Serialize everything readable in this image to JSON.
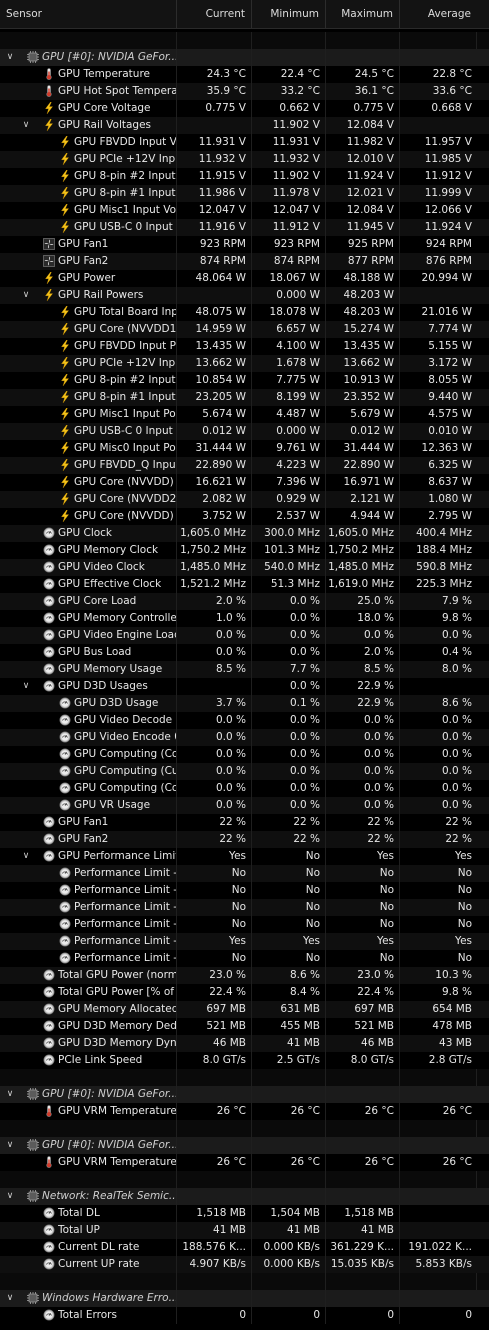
{
  "columns": {
    "sensor": "Sensor",
    "current": "Current",
    "minimum": "Minimum",
    "maximum": "Maximum",
    "average": "Average"
  },
  "rows": [
    {
      "type": "spacer"
    },
    {
      "type": "group",
      "level": 0,
      "expand": "v",
      "icon": "chip-icon",
      "label": "GPU [#0]: NVIDIA GeFor...",
      "v": [
        "",
        "",
        "",
        ""
      ]
    },
    {
      "type": "item",
      "level": 1,
      "icon": "thermometer-icon",
      "label": "GPU Temperature",
      "v": [
        "24.3 °C",
        "22.4 °C",
        "24.5 °C",
        "22.8 °C"
      ]
    },
    {
      "type": "item",
      "level": 1,
      "icon": "thermometer-icon",
      "label": "GPU Hot Spot Temperature",
      "v": [
        "35.9 °C",
        "33.2 °C",
        "36.1 °C",
        "33.6 °C"
      ]
    },
    {
      "type": "item",
      "level": 1,
      "icon": "lightning-icon",
      "label": "GPU Core Voltage",
      "v": [
        "0.775 V",
        "0.662 V",
        "0.775 V",
        "0.668 V"
      ]
    },
    {
      "type": "item",
      "level": 1,
      "expand": "v",
      "icon": "lightning-icon",
      "label": "GPU Rail Voltages",
      "v": [
        "",
        "11.902 V",
        "12.084 V",
        ""
      ]
    },
    {
      "type": "item",
      "level": 2,
      "icon": "lightning-icon",
      "label": "GPU FBVDD Input Vol...",
      "v": [
        "11.931 V",
        "11.931 V",
        "11.982 V",
        "11.957 V"
      ]
    },
    {
      "type": "item",
      "level": 2,
      "icon": "lightning-icon",
      "label": "GPU PCIe +12V Inpu...",
      "v": [
        "11.932 V",
        "11.932 V",
        "12.010 V",
        "11.985 V"
      ]
    },
    {
      "type": "item",
      "level": 2,
      "icon": "lightning-icon",
      "label": "GPU 8-pin #2 Input V...",
      "v": [
        "11.915 V",
        "11.902 V",
        "11.924 V",
        "11.912 V"
      ]
    },
    {
      "type": "item",
      "level": 2,
      "icon": "lightning-icon",
      "label": "GPU 8-pin #1 Input V...",
      "v": [
        "11.986 V",
        "11.978 V",
        "12.021 V",
        "11.999 V"
      ]
    },
    {
      "type": "item",
      "level": 2,
      "icon": "lightning-icon",
      "label": "GPU Misc1 Input Volt...",
      "v": [
        "12.047 V",
        "12.047 V",
        "12.084 V",
        "12.066 V"
      ]
    },
    {
      "type": "item",
      "level": 2,
      "icon": "lightning-icon",
      "label": "GPU USB-C 0 Input V...",
      "v": [
        "11.916 V",
        "11.912 V",
        "11.945 V",
        "11.924 V"
      ]
    },
    {
      "type": "item",
      "level": 1,
      "icon": "fan-icon",
      "label": "GPU Fan1",
      "v": [
        "923 RPM",
        "923 RPM",
        "925 RPM",
        "924 RPM"
      ]
    },
    {
      "type": "item",
      "level": 1,
      "icon": "fan-icon",
      "label": "GPU Fan2",
      "v": [
        "874 RPM",
        "874 RPM",
        "877 RPM",
        "876 RPM"
      ]
    },
    {
      "type": "item",
      "level": 1,
      "icon": "lightning-icon",
      "label": "GPU Power",
      "v": [
        "48.064 W",
        "18.067 W",
        "48.188 W",
        "20.994 W"
      ]
    },
    {
      "type": "item",
      "level": 1,
      "expand": "v",
      "icon": "lightning-icon",
      "label": "GPU Rail Powers",
      "v": [
        "",
        "0.000 W",
        "48.203 W",
        ""
      ]
    },
    {
      "type": "item",
      "level": 2,
      "icon": "lightning-icon",
      "label": "GPU Total Board Inpu...",
      "v": [
        "48.075 W",
        "18.078 W",
        "48.203 W",
        "21.016 W"
      ]
    },
    {
      "type": "item",
      "level": 2,
      "icon": "lightning-icon",
      "label": "GPU Core (NVVDD1) I...",
      "v": [
        "14.959 W",
        "6.657 W",
        "15.274 W",
        "7.774 W"
      ]
    },
    {
      "type": "item",
      "level": 2,
      "icon": "lightning-icon",
      "label": "GPU FBVDD Input Po...",
      "v": [
        "13.435 W",
        "4.100 W",
        "13.435 W",
        "5.155 W"
      ]
    },
    {
      "type": "item",
      "level": 2,
      "icon": "lightning-icon",
      "label": "GPU PCIe +12V Inpu...",
      "v": [
        "13.662 W",
        "1.678 W",
        "13.662 W",
        "3.172 W"
      ]
    },
    {
      "type": "item",
      "level": 2,
      "icon": "lightning-icon",
      "label": "GPU 8-pin #2 Input P...",
      "v": [
        "10.854 W",
        "7.775 W",
        "10.913 W",
        "8.055 W"
      ]
    },
    {
      "type": "item",
      "level": 2,
      "icon": "lightning-icon",
      "label": "GPU 8-pin #1 Input Po...",
      "v": [
        "23.205 W",
        "8.199 W",
        "23.352 W",
        "9.440 W"
      ]
    },
    {
      "type": "item",
      "level": 2,
      "icon": "lightning-icon",
      "label": "GPU Misc1 Input Power",
      "v": [
        "5.674 W",
        "4.487 W",
        "5.679 W",
        "4.575 W"
      ]
    },
    {
      "type": "item",
      "level": 2,
      "icon": "lightning-icon",
      "label": "GPU USB-C 0 Input P...",
      "v": [
        "0.012 W",
        "0.000 W",
        "0.012 W",
        "0.010 W"
      ]
    },
    {
      "type": "item",
      "level": 2,
      "icon": "lightning-icon",
      "label": "GPU Misc0 Input Pow...",
      "v": [
        "31.444 W",
        "9.761 W",
        "31.444 W",
        "12.363 W"
      ]
    },
    {
      "type": "item",
      "level": 2,
      "icon": "lightning-icon",
      "label": "GPU FBVDD_Q Input ...",
      "v": [
        "22.890 W",
        "4.223 W",
        "22.890 W",
        "6.325 W"
      ]
    },
    {
      "type": "item",
      "level": 2,
      "icon": "lightning-icon",
      "label": "GPU Core (NVVDD) In...",
      "v": [
        "16.621 W",
        "7.396 W",
        "16.971 W",
        "8.637 W"
      ]
    },
    {
      "type": "item",
      "level": 2,
      "icon": "lightning-icon",
      "label": "GPU Core (NVVDD2) I...",
      "v": [
        "2.082 W",
        "0.929 W",
        "2.121 W",
        "1.080 W"
      ]
    },
    {
      "type": "item",
      "level": 2,
      "icon": "lightning-icon",
      "label": "GPU Core (NVVDD) O...",
      "v": [
        "3.752 W",
        "2.537 W",
        "4.944 W",
        "2.795 W"
      ]
    },
    {
      "type": "item",
      "level": 1,
      "icon": "clock-icon",
      "label": "GPU Clock",
      "v": [
        "1,605.0 MHz",
        "300.0 MHz",
        "1,605.0 MHz",
        "400.4 MHz"
      ]
    },
    {
      "type": "item",
      "level": 1,
      "icon": "clock-icon",
      "label": "GPU Memory Clock",
      "v": [
        "1,750.2 MHz",
        "101.3 MHz",
        "1,750.2 MHz",
        "188.4 MHz"
      ]
    },
    {
      "type": "item",
      "level": 1,
      "icon": "clock-icon",
      "label": "GPU Video Clock",
      "v": [
        "1,485.0 MHz",
        "540.0 MHz",
        "1,485.0 MHz",
        "590.8 MHz"
      ]
    },
    {
      "type": "item",
      "level": 1,
      "icon": "clock-icon",
      "label": "GPU Effective Clock",
      "v": [
        "1,521.2 MHz",
        "51.3 MHz",
        "1,619.0 MHz",
        "225.3 MHz"
      ]
    },
    {
      "type": "item",
      "level": 1,
      "icon": "clock-icon",
      "label": "GPU Core Load",
      "v": [
        "2.0 %",
        "0.0 %",
        "25.0 %",
        "7.9 %"
      ]
    },
    {
      "type": "item",
      "level": 1,
      "icon": "clock-icon",
      "label": "GPU Memory Controller L...",
      "v": [
        "1.0 %",
        "0.0 %",
        "18.0 %",
        "9.8 %"
      ]
    },
    {
      "type": "item",
      "level": 1,
      "icon": "clock-icon",
      "label": "GPU Video Engine Load",
      "v": [
        "0.0 %",
        "0.0 %",
        "0.0 %",
        "0.0 %"
      ]
    },
    {
      "type": "item",
      "level": 1,
      "icon": "clock-icon",
      "label": "GPU Bus Load",
      "v": [
        "0.0 %",
        "0.0 %",
        "2.0 %",
        "0.4 %"
      ]
    },
    {
      "type": "item",
      "level": 1,
      "icon": "clock-icon",
      "label": "GPU Memory Usage",
      "v": [
        "8.5 %",
        "7.7 %",
        "8.5 %",
        "8.0 %"
      ]
    },
    {
      "type": "item",
      "level": 1,
      "expand": "v",
      "icon": "clock-icon",
      "label": "GPU D3D Usages",
      "v": [
        "",
        "0.0 %",
        "22.9 %",
        ""
      ]
    },
    {
      "type": "item",
      "level": 2,
      "icon": "clock-icon",
      "label": "GPU D3D Usage",
      "v": [
        "3.7 %",
        "0.1 %",
        "22.9 %",
        "8.6 %"
      ]
    },
    {
      "type": "item",
      "level": 2,
      "icon": "clock-icon",
      "label": "GPU Video Decode 0 ...",
      "v": [
        "0.0 %",
        "0.0 %",
        "0.0 %",
        "0.0 %"
      ]
    },
    {
      "type": "item",
      "level": 2,
      "icon": "clock-icon",
      "label": "GPU Video Encode 0 ...",
      "v": [
        "0.0 %",
        "0.0 %",
        "0.0 %",
        "0.0 %"
      ]
    },
    {
      "type": "item",
      "level": 2,
      "icon": "clock-icon",
      "label": "GPU Computing (Com...",
      "v": [
        "0.0 %",
        "0.0 %",
        "0.0 %",
        "0.0 %"
      ]
    },
    {
      "type": "item",
      "level": 2,
      "icon": "clock-icon",
      "label": "GPU Computing (Cud...",
      "v": [
        "0.0 %",
        "0.0 %",
        "0.0 %",
        "0.0 %"
      ]
    },
    {
      "type": "item",
      "level": 2,
      "icon": "clock-icon",
      "label": "GPU Computing (Com...",
      "v": [
        "0.0 %",
        "0.0 %",
        "0.0 %",
        "0.0 %"
      ]
    },
    {
      "type": "item",
      "level": 2,
      "icon": "clock-icon",
      "label": "GPU VR Usage",
      "v": [
        "0.0 %",
        "0.0 %",
        "0.0 %",
        "0.0 %"
      ]
    },
    {
      "type": "item",
      "level": 1,
      "icon": "clock-icon",
      "label": "GPU Fan1",
      "v": [
        "22 %",
        "22 %",
        "22 %",
        "22 %"
      ]
    },
    {
      "type": "item",
      "level": 1,
      "icon": "clock-icon",
      "label": "GPU Fan2",
      "v": [
        "22 %",
        "22 %",
        "22 %",
        "22 %"
      ]
    },
    {
      "type": "item",
      "level": 1,
      "expand": "v",
      "icon": "clock-icon",
      "label": "GPU Performance Limits",
      "v": [
        "Yes",
        "No",
        "Yes",
        "Yes"
      ]
    },
    {
      "type": "item",
      "level": 2,
      "icon": "clock-icon",
      "label": "Performance Limit - P...",
      "v": [
        "No",
        "No",
        "No",
        "No"
      ]
    },
    {
      "type": "item",
      "level": 2,
      "icon": "clock-icon",
      "label": "Performance Limit - T...",
      "v": [
        "No",
        "No",
        "No",
        "No"
      ]
    },
    {
      "type": "item",
      "level": 2,
      "icon": "clock-icon",
      "label": "Performance Limit - R...",
      "v": [
        "No",
        "No",
        "No",
        "No"
      ]
    },
    {
      "type": "item",
      "level": 2,
      "icon": "clock-icon",
      "label": "Performance Limit - M...",
      "v": [
        "No",
        "No",
        "No",
        "No"
      ]
    },
    {
      "type": "item",
      "level": 2,
      "icon": "clock-icon",
      "label": "Performance Limit - U...",
      "v": [
        "Yes",
        "Yes",
        "Yes",
        "Yes"
      ]
    },
    {
      "type": "item",
      "level": 2,
      "icon": "clock-icon",
      "label": "Performance Limit - S...",
      "v": [
        "No",
        "No",
        "No",
        "No"
      ]
    },
    {
      "type": "item",
      "level": 1,
      "icon": "clock-icon",
      "label": "Total GPU Power (normal...",
      "v": [
        "23.0 %",
        "8.6 %",
        "23.0 %",
        "10.3 %"
      ]
    },
    {
      "type": "item",
      "level": 1,
      "icon": "clock-icon",
      "label": "Total GPU Power [% of ...",
      "v": [
        "22.4 %",
        "8.4 %",
        "22.4 %",
        "9.8 %"
      ]
    },
    {
      "type": "item",
      "level": 1,
      "icon": "clock-icon",
      "label": "GPU Memory Allocated",
      "v": [
        "697 MB",
        "631 MB",
        "697 MB",
        "654 MB"
      ]
    },
    {
      "type": "item",
      "level": 1,
      "icon": "clock-icon",
      "label": "GPU D3D Memory Dedica...",
      "v": [
        "521 MB",
        "455 MB",
        "521 MB",
        "478 MB"
      ]
    },
    {
      "type": "item",
      "level": 1,
      "icon": "clock-icon",
      "label": "GPU D3D Memory Dynamic",
      "v": [
        "46 MB",
        "41 MB",
        "46 MB",
        "43 MB"
      ]
    },
    {
      "type": "item",
      "level": 1,
      "icon": "clock-icon",
      "label": "PCIe Link Speed",
      "v": [
        "8.0 GT/s",
        "2.5 GT/s",
        "8.0 GT/s",
        "2.8 GT/s"
      ]
    },
    {
      "type": "spacer"
    },
    {
      "type": "group",
      "level": 0,
      "expand": "v",
      "icon": "chip-icon",
      "label": "GPU [#0]: NVIDIA GeFor...",
      "v": [
        "",
        "",
        "",
        ""
      ]
    },
    {
      "type": "item",
      "level": 1,
      "icon": "thermometer-icon",
      "label": "GPU VRM Temperature",
      "v": [
        "26 °C",
        "26 °C",
        "26 °C",
        "26 °C"
      ]
    },
    {
      "type": "spacer"
    },
    {
      "type": "group",
      "level": 0,
      "expand": "v",
      "icon": "chip-icon",
      "label": "GPU [#0]: NVIDIA GeFor...",
      "v": [
        "",
        "",
        "",
        ""
      ]
    },
    {
      "type": "item",
      "level": 1,
      "icon": "thermometer-icon",
      "label": "GPU VRM Temperature",
      "v": [
        "26 °C",
        "26 °C",
        "26 °C",
        "26 °C"
      ]
    },
    {
      "type": "spacer"
    },
    {
      "type": "group",
      "level": 0,
      "expand": "v",
      "icon": "chip-icon",
      "label": "Network: RealTek Semic...",
      "v": [
        "",
        "",
        "",
        ""
      ]
    },
    {
      "type": "item",
      "level": 1,
      "icon": "clock-icon",
      "label": "Total DL",
      "v": [
        "1,518 MB",
        "1,504 MB",
        "1,518 MB",
        ""
      ]
    },
    {
      "type": "item",
      "level": 1,
      "icon": "clock-icon",
      "label": "Total UP",
      "v": [
        "41 MB",
        "41 MB",
        "41 MB",
        ""
      ]
    },
    {
      "type": "item",
      "level": 1,
      "icon": "clock-icon",
      "label": "Current DL rate",
      "v": [
        "188.576 K...",
        "0.000 KB/s",
        "361.229 K...",
        "191.022 K..."
      ]
    },
    {
      "type": "item",
      "level": 1,
      "icon": "clock-icon",
      "label": "Current UP rate",
      "v": [
        "4.907 KB/s",
        "0.000 KB/s",
        "15.035 KB/s",
        "5.853 KB/s"
      ]
    },
    {
      "type": "spacer"
    },
    {
      "type": "group",
      "level": 0,
      "expand": "v",
      "icon": "chip-icon",
      "label": "Windows Hardware Erro...",
      "v": [
        "",
        "",
        "",
        ""
      ]
    },
    {
      "type": "item",
      "level": 1,
      "icon": "clock-icon",
      "label": "Total Errors",
      "v": [
        "0",
        "0",
        "0",
        "0"
      ]
    }
  ]
}
